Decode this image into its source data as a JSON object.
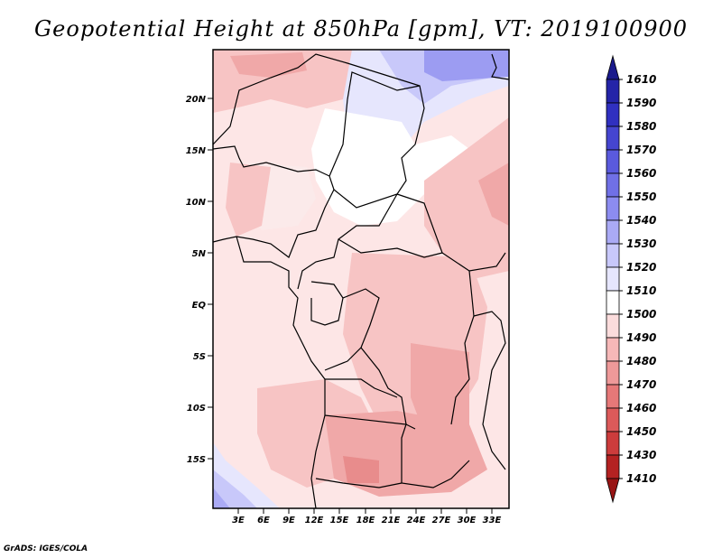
{
  "title": "Geopotential Height at 850hPa [gpm], VT: 2019100900",
  "credit": "GrADS: IGES/COLA",
  "map": {
    "lat_ticks": [
      "20N",
      "15N",
      "10N",
      "5N",
      "EQ",
      "5S",
      "10S",
      "15S"
    ],
    "lon_ticks": [
      "3E",
      "6E",
      "9E",
      "12E",
      "15E",
      "18E",
      "21E",
      "24E",
      "27E",
      "30E",
      "33E"
    ]
  },
  "colorbar": {
    "levels": [
      "1610",
      "1590",
      "1580",
      "1570",
      "1560",
      "1550",
      "1540",
      "1530",
      "1520",
      "1510",
      "1500",
      "1490",
      "1480",
      "1470",
      "1460",
      "1450",
      "1430",
      "1410"
    ],
    "colors": [
      "#1a1a8c",
      "#2424a8",
      "#3030c0",
      "#4545d0",
      "#5a5add",
      "#7070e6",
      "#8c8cf0",
      "#aaaaf5",
      "#c8c8fa",
      "#e6e6fd",
      "#ffffff",
      "#fbdcdc",
      "#f6b8b8",
      "#ee9999",
      "#e67878",
      "#dc5a5a",
      "#cc3c3c",
      "#b42222",
      "#981414"
    ]
  }
}
